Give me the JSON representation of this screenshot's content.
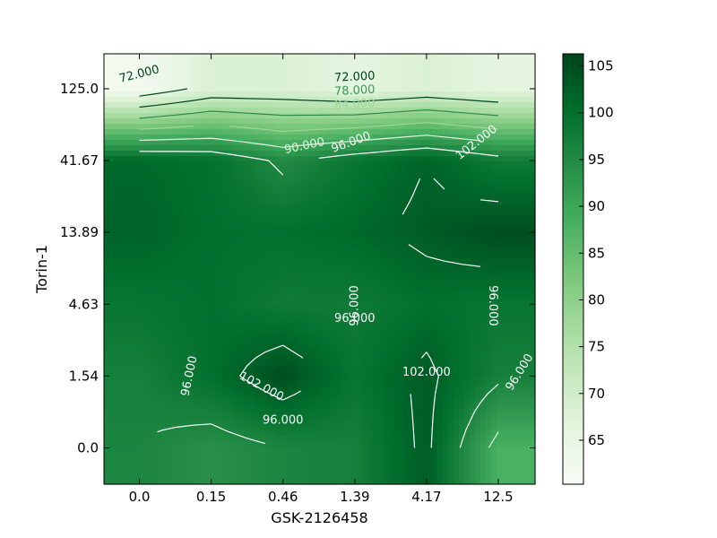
{
  "chart_data": {
    "type": "heatmap",
    "subtype": "contour-over-heatmap",
    "title": "",
    "xlabel": "GSK-2126458",
    "ylabel": "Torin-1",
    "x_categories": [
      "0.0",
      "0.15",
      "0.46",
      "1.39",
      "4.17",
      "12.5"
    ],
    "y_categories": [
      "0.0",
      "1.54",
      "4.63",
      "13.89",
      "41.67",
      "125.0"
    ],
    "colormap": "Greens",
    "colorbar": {
      "min": 60.3,
      "max": 106.3,
      "ticks": [
        "65",
        "70",
        "75",
        "80",
        "85",
        "90",
        "95",
        "100",
        "105"
      ]
    },
    "values_by_y": [
      {
        "y": "0.0",
        "values": [
          96,
          94,
          96,
          97,
          103,
          88
        ]
      },
      {
        "y": "1.54",
        "values": [
          97,
          100,
          105,
          99,
          103,
          97
        ]
      },
      {
        "y": "4.63",
        "values": [
          99,
          100,
          98,
          98,
          100,
          99
        ]
      },
      {
        "y": "13.89",
        "values": [
          102,
          100,
          100,
          101,
          103,
          105
        ]
      },
      {
        "y": "41.67",
        "values": [
          101,
          100,
          95,
          99,
          102,
          98
        ]
      },
      {
        "y": "125.0",
        "values": [
          62,
          68,
          68,
          66,
          68,
          66
        ]
      }
    ],
    "contour_labels": [
      {
        "text": "72.000",
        "color": "#00441b",
        "x": 0.0,
        "y": 5.2,
        "angle": -14
      },
      {
        "text": "72.000",
        "color": "#00441b",
        "x": 3.0,
        "y": 5.16,
        "angle": -3
      },
      {
        "text": "78.000",
        "color": "#3a9a55",
        "x": 3.0,
        "y": 4.97,
        "angle": -3
      },
      {
        "text": "84.000",
        "color": "#9fd69a",
        "x": 3.0,
        "y": 4.78,
        "angle": -3
      },
      {
        "text": "90.000",
        "color": "#e5f5e0",
        "x": 2.3,
        "y": 4.2,
        "angle": -12
      },
      {
        "text": "96.000",
        "color": "#ffffff",
        "x": 2.95,
        "y": 4.25,
        "angle": -20
      },
      {
        "text": "102.000",
        "color": "#ffffff",
        "x": 4.7,
        "y": 4.25,
        "angle": -38
      },
      {
        "text": "96.000",
        "color": "#ffffff",
        "x": 3.0,
        "y": 1.98,
        "angle": -90
      },
      {
        "text": "96.000",
        "color": "#ffffff",
        "x": 3.0,
        "y": 1.8,
        "angle": 0
      },
      {
        "text": "96.000",
        "color": "#ffffff",
        "x": 4.92,
        "y": 1.98,
        "angle": 90
      },
      {
        "text": "96.000",
        "color": "#ffffff",
        "x": 0.7,
        "y": 1.0,
        "angle": -78
      },
      {
        "text": "102.000",
        "color": "#ffffff",
        "x": 1.7,
        "y": 0.85,
        "angle": 28
      },
      {
        "text": "96.000",
        "color": "#ffffff",
        "x": 2.0,
        "y": 0.38,
        "angle": 0
      },
      {
        "text": "102.000",
        "color": "#ffffff",
        "x": 4.0,
        "y": 1.05,
        "angle": 0
      },
      {
        "text": "96.000",
        "color": "#ffffff",
        "x": 5.3,
        "y": 1.05,
        "angle": -58
      }
    ],
    "grid": false,
    "legend": "colorbar-right"
  }
}
